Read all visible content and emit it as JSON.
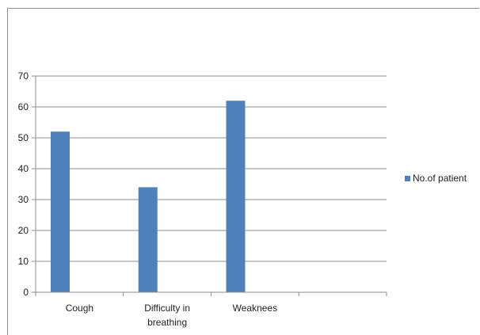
{
  "chart_data": {
    "type": "bar",
    "title": "",
    "xlabel": "",
    "ylabel": "",
    "categories": [
      [
        "Cough"
      ],
      [
        "Difficulty in",
        "breathing"
      ],
      [
        "Weaknees"
      ],
      [
        ""
      ]
    ],
    "series": [
      {
        "name": "No.of patient",
        "values": [
          52,
          34,
          62,
          null
        ],
        "color": "#4f81bd"
      }
    ],
    "ylim": [
      0,
      70
    ],
    "yticks": [
      0,
      10,
      20,
      30,
      40,
      50,
      60,
      70
    ],
    "grid": true,
    "legend_position": "right"
  }
}
